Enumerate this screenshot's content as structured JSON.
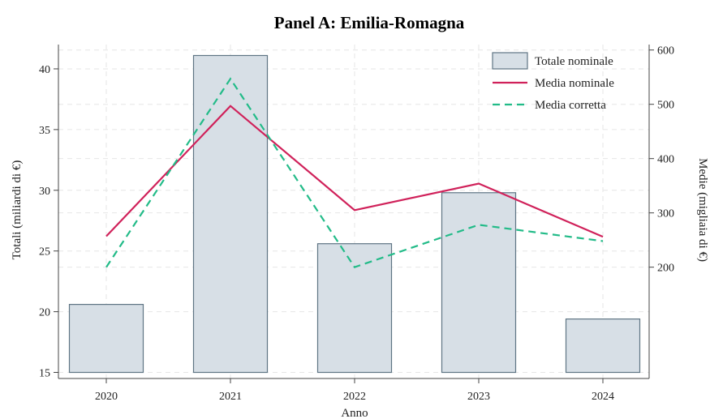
{
  "chart_data": {
    "type": "bar+line",
    "title": "Panel A: Emilia-Romagna",
    "xlabel": "Anno",
    "ylabel_left": "Totali (miliardi di €)",
    "ylabel_right": "Medie (migliaia di €)",
    "categories": [
      "2020",
      "2021",
      "2022",
      "2023",
      "2024"
    ],
    "left_axis": {
      "range": [
        14.5,
        42
      ],
      "ticks": [
        "15",
        "20",
        "25",
        "30",
        "35",
        "40"
      ]
    },
    "right_axis": {
      "range": [
        -5,
        610
      ],
      "ticks": [
        "200",
        "300",
        "400",
        "500",
        "600"
      ]
    },
    "bar_base": 15,
    "series": [
      {
        "name": "Totale nominale",
        "type": "bar",
        "axis": "left",
        "color": "#d7dfe6",
        "stroke": "#5f7584",
        "values": [
          20.6,
          41.1,
          25.6,
          29.8,
          19.4
        ]
      },
      {
        "name": "Media nominale",
        "type": "line",
        "axis": "right",
        "color": "#d0215a",
        "dash": "solid",
        "values": [
          257,
          497,
          305,
          354,
          256
        ]
      },
      {
        "name": "Media corretta",
        "type": "line",
        "axis": "right",
        "color": "#22bb88",
        "dash": "dashed",
        "values": [
          200,
          547,
          200,
          278,
          248
        ]
      }
    ],
    "grid": true,
    "legend_position": "top-right"
  }
}
